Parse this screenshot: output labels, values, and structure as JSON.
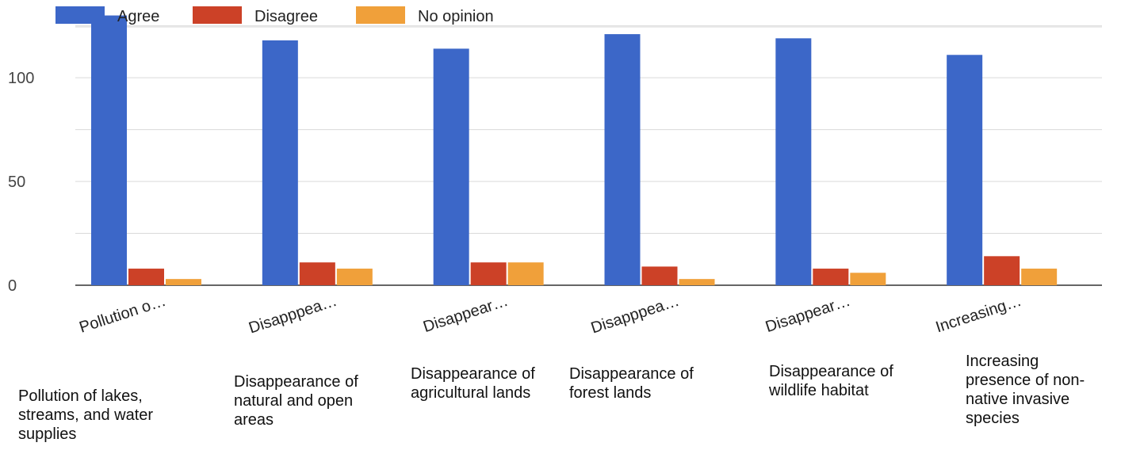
{
  "chart_data": {
    "type": "bar",
    "categories": [
      "Pollution of lakes, streams, and water supplies",
      "Disappearance of natural and open areas",
      "Disappearance of agricultural lands",
      "Disappearance of forest lands",
      "Disappearance of wildlife habitat",
      "Increasing presence of non-native invasive species"
    ],
    "tick_labels": [
      "Pollution o…",
      "Disapppea…",
      "Disappear…",
      "Disapppea…",
      "Disappear…",
      "Increasing…"
    ],
    "series": [
      {
        "name": "Agree",
        "color": "#3c67c8",
        "values": [
          130,
          118,
          114,
          121,
          119,
          111
        ]
      },
      {
        "name": "Disagree",
        "color": "#cc4127",
        "values": [
          8,
          11,
          11,
          9,
          8,
          14
        ]
      },
      {
        "name": "No opinion",
        "color": "#f0a03a",
        "values": [
          3,
          8,
          11,
          3,
          6,
          8
        ]
      }
    ],
    "ylim": [
      0,
      126
    ],
    "yticks": [
      0,
      50,
      100
    ],
    "grid": true,
    "legend_position": "top-left",
    "title": "",
    "xlabel": "",
    "ylabel": ""
  }
}
